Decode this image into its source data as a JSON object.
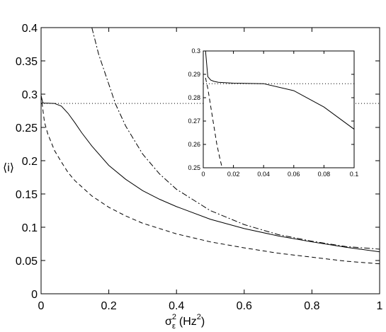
{
  "chart_data": [
    {
      "type": "line",
      "xlabel": "σ",
      "xlabel_sup": "2",
      "xlabel_sub": "ε",
      "xlabel_unit": "(Hz",
      "xlabel_unit_sup": "2",
      "xlabel_unit_end": ")",
      "ylabel": "⟨i⟩",
      "xlim": [
        0,
        1
      ],
      "ylim": [
        0,
        0.4
      ],
      "xticks": [
        0,
        0.2,
        0.4,
        0.6,
        0.8,
        1
      ],
      "xtick_labels": [
        "0",
        "0.2",
        "0.4",
        "0.6",
        "0.8",
        "1"
      ],
      "yticks": [
        0,
        0.05,
        0.1,
        0.15,
        0.2,
        0.25,
        0.3,
        0.35,
        0.4
      ],
      "ytick_labels": [
        "0",
        "0.05",
        "0.1",
        "0.15",
        "0.2",
        "0.25",
        "0.3",
        "0.35",
        "0.4"
      ],
      "grid": false,
      "series": [
        {
          "style": "solid",
          "x": [
            0,
            0.005,
            0.01,
            0.02,
            0.03,
            0.04,
            0.05,
            0.06,
            0.08,
            0.1,
            0.12,
            0.15,
            0.2,
            0.25,
            0.3,
            0.35,
            0.4,
            0.5,
            0.6,
            0.7,
            0.8,
            0.9,
            1.0
          ],
          "y": [
            0.298,
            0.287,
            0.2865,
            0.2865,
            0.2862,
            0.286,
            0.284,
            0.282,
            0.271,
            0.257,
            0.242,
            0.222,
            0.193,
            0.172,
            0.155,
            0.142,
            0.131,
            0.112,
            0.098,
            0.087,
            0.078,
            0.07,
            0.063
          ]
        },
        {
          "style": "dashed",
          "x": [
            0,
            0.005,
            0.01,
            0.02,
            0.04,
            0.06,
            0.08,
            0.1,
            0.15,
            0.2,
            0.25,
            0.3,
            0.4,
            0.5,
            0.6,
            0.7,
            0.8,
            0.9,
            1.0
          ],
          "y": [
            0.298,
            0.278,
            0.258,
            0.24,
            0.215,
            0.198,
            0.182,
            0.17,
            0.147,
            0.13,
            0.117,
            0.106,
            0.09,
            0.078,
            0.069,
            0.061,
            0.055,
            0.049,
            0.045
          ]
        },
        {
          "style": "dashdot",
          "x": [
            0.15,
            0.17,
            0.2,
            0.22,
            0.25,
            0.3,
            0.35,
            0.4,
            0.5,
            0.6,
            0.7,
            0.8,
            0.9,
            1.0
          ],
          "y": [
            0.4,
            0.36,
            0.315,
            0.285,
            0.252,
            0.21,
            0.18,
            0.157,
            0.125,
            0.104,
            0.089,
            0.079,
            0.071,
            0.067
          ]
        },
        {
          "style": "dotted",
          "x": [
            0,
            1
          ],
          "y": [
            0.286,
            0.286
          ]
        }
      ]
    },
    {
      "type": "line",
      "inset": true,
      "xlim": [
        0,
        0.1
      ],
      "ylim": [
        0.25,
        0.3
      ],
      "xticks": [
        0,
        0.02,
        0.04,
        0.06,
        0.08,
        0.1
      ],
      "xtick_labels": [
        "0",
        "0.02",
        "0.04",
        "0.06",
        "0.08",
        "0.1"
      ],
      "yticks": [
        0.25,
        0.26,
        0.27,
        0.28,
        0.29,
        0.3
      ],
      "ytick_labels": [
        "0.25",
        "0.26",
        "0.27",
        "0.28",
        "0.29",
        "0.3"
      ],
      "grid": false,
      "series": [
        {
          "style": "solid",
          "x": [
            0.0015,
            0.003,
            0.005,
            0.007,
            0.01,
            0.015,
            0.02,
            0.04,
            0.06,
            0.08,
            0.1
          ],
          "y": [
            0.3,
            0.289,
            0.2875,
            0.287,
            0.2866,
            0.2864,
            0.2862,
            0.286,
            0.283,
            0.276,
            0.2665
          ]
        },
        {
          "style": "dashed",
          "x": [
            0.0015,
            0.003,
            0.005,
            0.007,
            0.009,
            0.011,
            0.0125
          ],
          "y": [
            0.2885,
            0.284,
            0.276,
            0.268,
            0.26,
            0.254,
            0.25
          ]
        },
        {
          "style": "dotted",
          "x": [
            0,
            0.1
          ],
          "y": [
            0.286,
            0.286
          ]
        }
      ]
    }
  ]
}
